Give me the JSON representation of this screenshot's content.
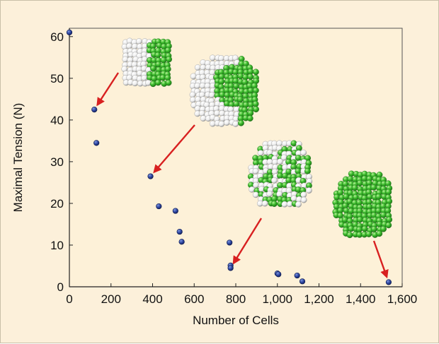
{
  "chart_data": {
    "type": "scatter",
    "title": "",
    "xlabel": "Number of Cells",
    "ylabel": "Maximal Tension (N)",
    "xlim": [
      0,
      1600
    ],
    "ylim": [
      0,
      62
    ],
    "x_ticks": [
      0,
      200,
      400,
      600,
      800,
      1000,
      1200,
      1400,
      1600
    ],
    "x_tick_labels": [
      "0",
      "200",
      "400",
      "600",
      "800",
      "1,000",
      "1,200",
      "1,400",
      "1,600"
    ],
    "y_ticks": [
      0,
      10,
      20,
      30,
      40,
      50,
      60
    ],
    "y_tick_labels": [
      "0",
      "10",
      "20",
      "30",
      "40",
      "50",
      "60"
    ],
    "grid": false,
    "legend": "none",
    "series": [
      {
        "x": [
          0,
          120,
          130,
          390,
          430,
          510,
          530,
          540,
          770,
          775,
          775,
          1000,
          1005,
          1095,
          1120,
          1535
        ],
        "y": [
          61,
          42.5,
          34.5,
          26.5,
          19.3,
          18.2,
          13.2,
          10.8,
          10.6,
          5.1,
          4.5,
          3.2,
          3.0,
          2.7,
          1.3,
          1.1
        ]
      }
    ],
    "insets": [
      {
        "description": "cluster with green half",
        "arrow_to": [
          120,
          42.5
        ]
      },
      {
        "description": "cluster with green block",
        "arrow_to": [
          390,
          26.5
        ]
      },
      {
        "description": "cluster with scattered green cells",
        "arrow_to": [
          775,
          4.5
        ]
      },
      {
        "description": "all-green cluster",
        "arrow_to": [
          1535,
          1.1
        ]
      }
    ]
  },
  "colors": {
    "panel_background": "#fcf0da",
    "plot_background": "#fdf1d8",
    "marker": "#243a8c",
    "arrow": "#d82020",
    "green_cell": "#3fbf2f",
    "white_cell": "#f2f2f2"
  }
}
